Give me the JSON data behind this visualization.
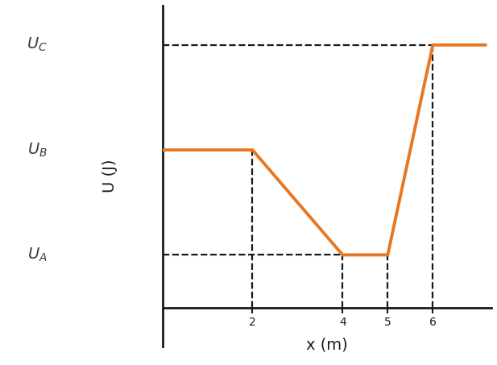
{
  "line_x": [
    0,
    2,
    4,
    5,
    6,
    7.2
  ],
  "line_y": [
    6,
    6,
    2,
    2,
    10,
    10
  ],
  "U_A": 2,
  "U_B": 6,
  "U_C": 10,
  "xlim": [
    0,
    7.3
  ],
  "ylim": [
    -1.5,
    11.5
  ],
  "xlabel": "x (m)",
  "ylabel": "U (J)",
  "xticks": [
    2,
    4,
    5,
    6
  ],
  "line_color": "#E87722",
  "line_width": 2.8,
  "dash_color": "#1a1a1a",
  "dash_linewidth": 1.6,
  "label_fontsize": 14,
  "axis_label_fontsize": 14,
  "tick_fontsize": 13,
  "fig_width": 6.17,
  "fig_height": 4.53,
  "dpi": 100
}
